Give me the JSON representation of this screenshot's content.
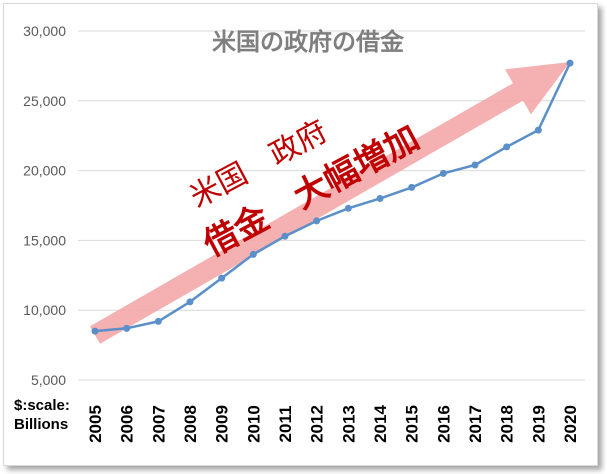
{
  "chart_data": {
    "type": "line",
    "title": "米国の政府の借金",
    "x": [
      "2005",
      "2006",
      "2007",
      "2008",
      "2009",
      "2010",
      "2011",
      "2012",
      "2013",
      "2014",
      "2015",
      "2016",
      "2017",
      "2018",
      "2019",
      "2020"
    ],
    "series": [
      {
        "values": [
          8500,
          8700,
          9200,
          10600,
          12300,
          14000,
          15300,
          16400,
          17300,
          18000,
          18800,
          19800,
          20400,
          21700,
          22900,
          27700
        ]
      }
    ],
    "yticks": [
      "5,000",
      "10,000",
      "15,000",
      "20,000",
      "25,000",
      "30,000"
    ],
    "ylim": [
      5000,
      30000
    ],
    "grid": true,
    "annotation_line1": "米国　政府",
    "annotation_line2": "借金　大幅増加",
    "unit_label_line1": "$:scale:",
    "unit_label_line2": "Billions"
  },
  "colors": {
    "line": "#5b8fc9",
    "arrow": "#f4a7a8",
    "annotation": "#c00000",
    "grid": "#d9d9d9"
  }
}
